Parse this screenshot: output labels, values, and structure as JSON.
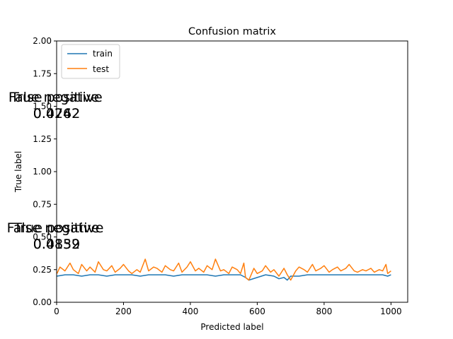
{
  "chart_data": {
    "type": "line",
    "title": "Confusion matrix",
    "xlabel": "Predicted label",
    "ylabel": "True label",
    "xlim": [
      0,
      1050
    ],
    "ylim": [
      0,
      2.0
    ],
    "xticks": [
      "0",
      "200",
      "400",
      "600",
      "800",
      "1000"
    ],
    "xtick_values": [
      0,
      200,
      400,
      600,
      800,
      1000
    ],
    "yticks": [
      "0.00",
      "0.25",
      "0.50",
      "0.75",
      "1.00",
      "1.25",
      "1.50",
      "1.75",
      "2.00"
    ],
    "ytick_values": [
      0,
      0.25,
      0.5,
      0.75,
      1.0,
      1.25,
      1.5,
      1.75,
      2.0
    ],
    "legend_position": "top-left",
    "colors": {
      "train": "#1f77b4",
      "test": "#ff7f0e"
    },
    "series": [
      {
        "name": "train",
        "x": [
          1,
          25,
          50,
          75,
          100,
          125,
          150,
          175,
          200,
          225,
          250,
          275,
          300,
          325,
          350,
          375,
          400,
          425,
          450,
          475,
          500,
          525,
          550,
          565,
          575,
          600,
          625,
          650,
          665,
          680,
          690,
          700,
          725,
          750,
          775,
          800,
          825,
          850,
          875,
          900,
          925,
          950,
          975,
          990,
          1000
        ],
        "values": [
          0.2,
          0.21,
          0.21,
          0.2,
          0.21,
          0.21,
          0.2,
          0.21,
          0.21,
          0.21,
          0.2,
          0.21,
          0.21,
          0.21,
          0.2,
          0.21,
          0.21,
          0.21,
          0.21,
          0.2,
          0.21,
          0.21,
          0.21,
          0.19,
          0.17,
          0.19,
          0.21,
          0.2,
          0.18,
          0.19,
          0.17,
          0.2,
          0.2,
          0.21,
          0.21,
          0.21,
          0.21,
          0.21,
          0.21,
          0.21,
          0.21,
          0.21,
          0.21,
          0.2,
          0.21
        ]
      },
      {
        "name": "test",
        "x": [
          1,
          10,
          25,
          40,
          50,
          65,
          75,
          90,
          100,
          115,
          125,
          140,
          150,
          165,
          175,
          190,
          200,
          215,
          225,
          240,
          250,
          265,
          275,
          290,
          300,
          315,
          325,
          340,
          350,
          365,
          375,
          390,
          400,
          415,
          425,
          440,
          450,
          465,
          475,
          490,
          500,
          515,
          525,
          540,
          550,
          560,
          565,
          575,
          590,
          600,
          615,
          625,
          640,
          650,
          665,
          680,
          690,
          700,
          715,
          725,
          740,
          750,
          765,
          775,
          790,
          800,
          815,
          825,
          840,
          850,
          865,
          875,
          890,
          900,
          915,
          925,
          940,
          950,
          965,
          975,
          985,
          990,
          1000
        ],
        "values": [
          0.22,
          0.27,
          0.24,
          0.3,
          0.25,
          0.22,
          0.29,
          0.24,
          0.27,
          0.23,
          0.31,
          0.25,
          0.24,
          0.28,
          0.23,
          0.26,
          0.29,
          0.24,
          0.22,
          0.25,
          0.23,
          0.33,
          0.24,
          0.27,
          0.26,
          0.23,
          0.28,
          0.25,
          0.24,
          0.3,
          0.23,
          0.27,
          0.31,
          0.24,
          0.26,
          0.23,
          0.28,
          0.25,
          0.33,
          0.24,
          0.25,
          0.22,
          0.27,
          0.25,
          0.22,
          0.3,
          0.19,
          0.17,
          0.26,
          0.22,
          0.24,
          0.28,
          0.23,
          0.25,
          0.2,
          0.26,
          0.21,
          0.17,
          0.24,
          0.27,
          0.25,
          0.23,
          0.29,
          0.24,
          0.26,
          0.28,
          0.23,
          0.25,
          0.27,
          0.24,
          0.26,
          0.29,
          0.24,
          0.23,
          0.25,
          0.24,
          0.26,
          0.23,
          0.25,
          0.24,
          0.29,
          0.22,
          0.24
        ]
      }
    ],
    "annotations": [
      {
        "text": "True negative",
        "x": 0,
        "y": 1.55
      },
      {
        "text": "False positive",
        "x": 0,
        "y": 1.55
      },
      {
        "text": "0.4742",
        "x": 0,
        "y": 1.45
      },
      {
        "text": "0.0262",
        "x": 0,
        "y": 1.45
      },
      {
        "text": "True positive",
        "x": 0,
        "y": 0.55
      },
      {
        "text": "False negative",
        "x": 0,
        "y": 0.55
      },
      {
        "text": "0.4839",
        "x": 0,
        "y": 0.45
      },
      {
        "text": "0.0152",
        "x": 0,
        "y": 0.45
      }
    ]
  }
}
